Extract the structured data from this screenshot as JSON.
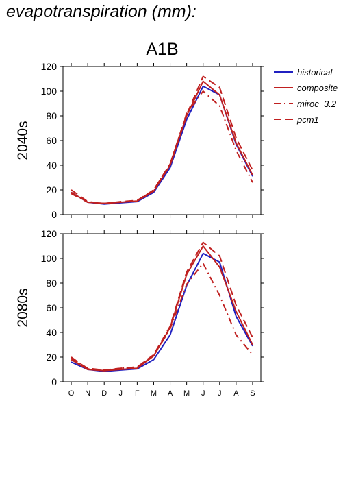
{
  "page_title": "evapotranspiration (mm):",
  "colors": {
    "historical": "#2020c0",
    "composite": "#c02020",
    "miroc_3.2": "#c02020",
    "pcm1": "#c02020"
  },
  "chart_data": {
    "type": "line",
    "scenario": "A1B",
    "x": [
      "O",
      "N",
      "D",
      "J",
      "F",
      "M",
      "A",
      "M",
      "J",
      "J",
      "A",
      "S"
    ],
    "ylim": [
      0,
      120
    ],
    "yticks": [
      "0",
      "20",
      "40",
      "60",
      "80",
      "100",
      "120"
    ],
    "legend_position": "right",
    "legend": [
      {
        "name": "historical",
        "dash": "solid",
        "color": "#2020c0"
      },
      {
        "name": "composite",
        "dash": "solid",
        "color": "#c02020"
      },
      {
        "name": "miroc_3.2",
        "dash": "dashdot",
        "color": "#c02020"
      },
      {
        "name": "pcm1",
        "dash": "dashed",
        "color": "#c02020"
      }
    ],
    "panels": [
      {
        "label": "2040s",
        "series": [
          {
            "name": "historical",
            "values": [
              18,
              10,
              8.5,
              9.5,
              10.5,
              18,
              38,
              77,
              104,
              97,
              57,
              31
            ]
          },
          {
            "name": "composite",
            "values": [
              18,
              10,
              9,
              10,
              11,
              19,
              40,
              80,
              108,
              97,
              58,
              32
            ]
          },
          {
            "name": "miroc_3.2",
            "values": [
              17,
              10,
              9,
              10,
              11,
              20,
              41,
              82,
              100,
              88,
              52,
              26
            ]
          },
          {
            "name": "pcm1",
            "values": [
              20,
              10.5,
              9,
              10.5,
              11.5,
              20,
              41,
              81,
              112,
              103,
              62,
              36
            ]
          }
        ]
      },
      {
        "label": "2080s",
        "series": [
          {
            "name": "historical",
            "values": [
              16,
              10,
              8.5,
              9.5,
              10.5,
              18,
              38,
              78,
              104,
              97,
              53,
              29
            ]
          },
          {
            "name": "composite",
            "values": [
              18,
              10,
              9,
              10,
              11,
              21,
              44,
              87,
              110,
              93,
              57,
              30
            ]
          },
          {
            "name": "miroc_3.2",
            "values": [
              20,
              10.5,
              9,
              11,
              12,
              21,
              43,
              79,
              96,
              70,
              38,
              22
            ]
          },
          {
            "name": "pcm1",
            "values": [
              19,
              11,
              9.5,
              11,
              12,
              22,
              45,
              89,
              113,
              102,
              62,
              36
            ]
          }
        ]
      }
    ]
  }
}
